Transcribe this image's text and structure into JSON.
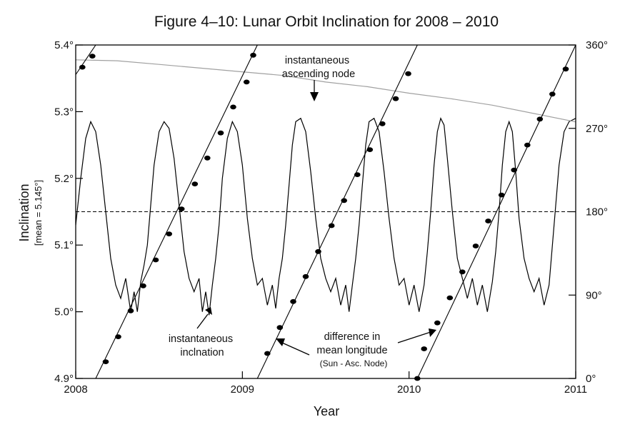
{
  "chart_data": {
    "type": "line",
    "title": "Figure 4–10: Lunar Orbit Inclination for 2008 – 2010",
    "xlabel": "Year",
    "ylabel": "Inclination",
    "ylabel_sub": "[mean = 5.145°]",
    "xlim": [
      2008,
      2011
    ],
    "ylim": [
      4.9,
      5.4
    ],
    "y2lim": [
      0,
      360
    ],
    "grid": false,
    "x_ticks": [
      "2008",
      "2009",
      "2010",
      "2011"
    ],
    "y_ticks": [
      "4.9°",
      "5.0°",
      "5.1°",
      "5.2°",
      "5.3°",
      "5.4°"
    ],
    "y2_ticks": [
      "0°",
      "90°",
      "180°",
      "270°",
      "360°"
    ],
    "mean_inclination": 5.145,
    "series": [
      {
        "label": "instantaneous inclination",
        "axis": "left",
        "style": "solid",
        "color": "#000000",
        "x": [
          2008.0,
          2008.03,
          2008.06,
          2008.09,
          2008.12,
          2008.15,
          2008.18,
          2008.21,
          2008.24,
          2008.27,
          2008.3,
          2008.33,
          2008.35,
          2008.37,
          2008.39,
          2008.41,
          2008.43,
          2008.45,
          2008.47,
          2008.5,
          2008.53,
          2008.56,
          2008.59,
          2008.62,
          2008.65,
          2008.68,
          2008.71,
          2008.74,
          2008.76,
          2008.78,
          2008.8,
          2008.82,
          2008.84,
          2008.86,
          2008.88,
          2008.91,
          2008.94,
          2008.97,
          2009.0,
          2009.03,
          2009.06,
          2009.09,
          2009.12,
          2009.15,
          2009.18,
          2009.2,
          2009.22,
          2009.24,
          2009.26,
          2009.28,
          2009.3,
          2009.32,
          2009.35,
          2009.38,
          2009.41,
          2009.44,
          2009.47,
          2009.5,
          2009.53,
          2009.56,
          2009.59,
          2009.62,
          2009.64,
          2009.66,
          2009.68,
          2009.7,
          2009.72,
          2009.74,
          2009.76,
          2009.79,
          2009.82,
          2009.85,
          2009.88,
          2009.91,
          2009.94,
          2009.97,
          2010.0,
          2010.03,
          2010.06,
          2010.09,
          2010.11,
          2010.13,
          2010.15,
          2010.17,
          2010.19,
          2010.21,
          2010.23,
          2010.26,
          2010.29,
          2010.32,
          2010.35,
          2010.38,
          2010.41,
          2010.44,
          2010.47,
          2010.5,
          2010.52,
          2010.54,
          2010.56,
          2010.58,
          2010.6,
          2010.62,
          2010.64,
          2010.66,
          2010.69,
          2010.72,
          2010.75,
          2010.78,
          2010.81,
          2010.84,
          2010.87,
          2010.9,
          2010.93,
          2010.96,
          2011.0
        ],
        "y": [
          5.13,
          5.2,
          5.26,
          5.285,
          5.27,
          5.22,
          5.15,
          5.08,
          5.04,
          5.02,
          5.05,
          5.0,
          5.03,
          5.0,
          5.045,
          5.07,
          5.1,
          5.16,
          5.22,
          5.27,
          5.285,
          5.275,
          5.23,
          5.16,
          5.09,
          5.05,
          5.03,
          5.05,
          5.0,
          5.03,
          4.995,
          5.04,
          5.08,
          5.13,
          5.2,
          5.26,
          5.285,
          5.27,
          5.22,
          5.14,
          5.08,
          5.04,
          5.05,
          5.01,
          5.04,
          5.005,
          5.05,
          5.08,
          5.13,
          5.19,
          5.25,
          5.285,
          5.29,
          5.27,
          5.21,
          5.14,
          5.08,
          5.05,
          5.03,
          5.05,
          5.01,
          5.04,
          5.0,
          5.04,
          5.08,
          5.13,
          5.19,
          5.25,
          5.285,
          5.29,
          5.27,
          5.21,
          5.14,
          5.08,
          5.04,
          5.05,
          5.01,
          5.04,
          5.0,
          5.04,
          5.09,
          5.15,
          5.22,
          5.27,
          5.29,
          5.28,
          5.23,
          5.15,
          5.08,
          5.05,
          5.02,
          5.05,
          5.01,
          5.04,
          5.0,
          5.045,
          5.09,
          5.15,
          5.22,
          5.27,
          5.285,
          5.27,
          5.21,
          5.14,
          5.08,
          5.05,
          5.03,
          5.05,
          5.01,
          5.04,
          5.13,
          5.22,
          5.27,
          5.285,
          5.29
        ]
      },
      {
        "label": "instantaneous ascending node",
        "axis": "right",
        "style": "solid",
        "color": "#a0a0a0",
        "x": [
          2008.0,
          2008.25,
          2008.5,
          2008.75,
          2009.0,
          2009.25,
          2009.5,
          2009.75,
          2010.0,
          2010.25,
          2010.5,
          2010.75,
          2011.0
        ],
        "y": [
          344,
          343,
          339,
          335,
          331,
          327,
          320,
          315,
          308,
          302,
          295,
          286,
          277
        ]
      },
      {
        "label": "difference in mean longitude (Sun - Asc. Node)",
        "axis": "right",
        "style": "solid with markers",
        "color": "#000000",
        "segments": [
          {
            "x": [
              2008.0,
              2008.12
            ],
            "y": [
              328,
              360
            ]
          },
          {
            "x": [
              2008.12,
              2009.09
            ],
            "y": [
              0,
              360
            ]
          },
          {
            "x": [
              2009.09,
              2010.05
            ],
            "y": [
              0,
              360
            ]
          },
          {
            "x": [
              2010.05,
              2011.0
            ],
            "y": [
              0,
              360
            ]
          }
        ],
        "markers": {
          "x": [
            2008.04,
            2008.1,
            2008.18,
            2008.255,
            2008.33,
            2008.405,
            2008.48,
            2008.56,
            2008.635,
            2008.715,
            2008.79,
            2008.87,
            2008.945,
            2009.025,
            2009.065,
            2009.15,
            2009.225,
            2009.305,
            2009.38,
            2009.455,
            2009.535,
            2009.61,
            2009.69,
            2009.765,
            2009.84,
            2009.92,
            2009.995,
            2010.05,
            2010.09,
            2010.17,
            2010.245,
            2010.32,
            2010.4,
            2010.475,
            2010.555,
            2010.63,
            2010.71,
            2010.785,
            2010.86,
            2010.94
          ],
          "y": [
            336,
            348,
            18,
            45,
            73,
            100,
            128,
            156,
            183,
            210,
            238,
            265,
            293,
            320,
            349,
            27,
            55,
            83,
            110,
            137,
            165,
            192,
            220,
            247,
            275,
            302,
            329,
            0,
            32,
            60,
            87,
            115,
            143,
            170,
            198,
            225,
            252,
            280,
            307,
            334
          ]
        }
      },
      {
        "label": "mean",
        "axis": "right",
        "style": "dashed",
        "color": "#000000",
        "x": [
          2008.0,
          2011.0
        ],
        "y": [
          180,
          180
        ]
      }
    ],
    "annotations": [
      {
        "lines": [
          "instantaneous",
          "ascending node"
        ]
      },
      {
        "lines": [
          "instantaneous",
          "inclnation"
        ]
      },
      {
        "lines": [
          "difference in",
          "mean longitude",
          "(Sun - Asc. Node)"
        ]
      }
    ]
  }
}
